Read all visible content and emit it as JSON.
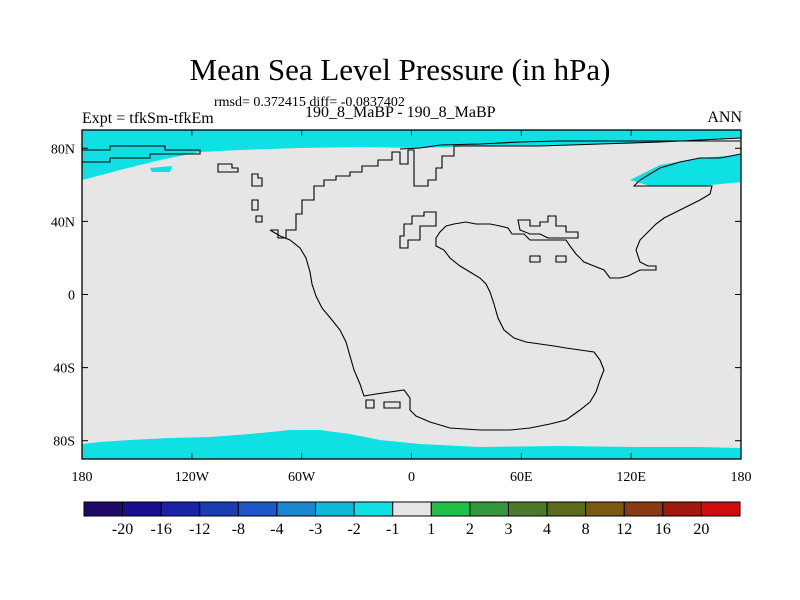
{
  "chart_data": {
    "type": "heatmap",
    "title": "Mean Sea Level Pressure (in hPa)",
    "subtitle": "rmsd= 0.372415 diff= -0.0837402",
    "left_label": "Expt = tfkSm-tfkEm",
    "center_label": "190_8_MaBP - 190_8_MaBP",
    "right_label": "ANN",
    "x_axis": {
      "range": [
        -180,
        180
      ],
      "ticks": [
        -180,
        -120,
        -60,
        0,
        60,
        120,
        180
      ],
      "tick_labels": [
        "180",
        "120W",
        "60W",
        "0",
        "60E",
        "120E",
        "180"
      ]
    },
    "y_axis": {
      "range": [
        -90,
        90
      ],
      "ticks": [
        80,
        40,
        0,
        -40,
        -80
      ],
      "tick_labels": [
        "80N",
        "40N",
        "0",
        "40S",
        "80S"
      ]
    },
    "field_description": "Difference field is mostly in the -1 to 1 hPa band; -2 to -1 hPa bands along the north polar margin and south polar margin.",
    "colorbar": {
      "levels": [
        "-20",
        "-16",
        "-12",
        "-8",
        "-4",
        "-3",
        "-2",
        "-1",
        "1",
        "2",
        "3",
        "4",
        "8",
        "12",
        "16",
        "20"
      ],
      "colors": [
        "#1f0a6b",
        "#1c0f8f",
        "#1a23a6",
        "#1a3fb3",
        "#1d57c8",
        "#1a86d0",
        "#10b7d9",
        "#0ee0e3",
        "#e6e6e6",
        "#20c046",
        "#34963a",
        "#4c7a2a",
        "#5c6a1c",
        "#7a5a12",
        "#8a3a10",
        "#a01a0e",
        "#d00c0c"
      ]
    },
    "colors": {
      "neutral": "#e6e6e6",
      "cyan": "#0ee0e3",
      "coast": "#000000"
    }
  }
}
